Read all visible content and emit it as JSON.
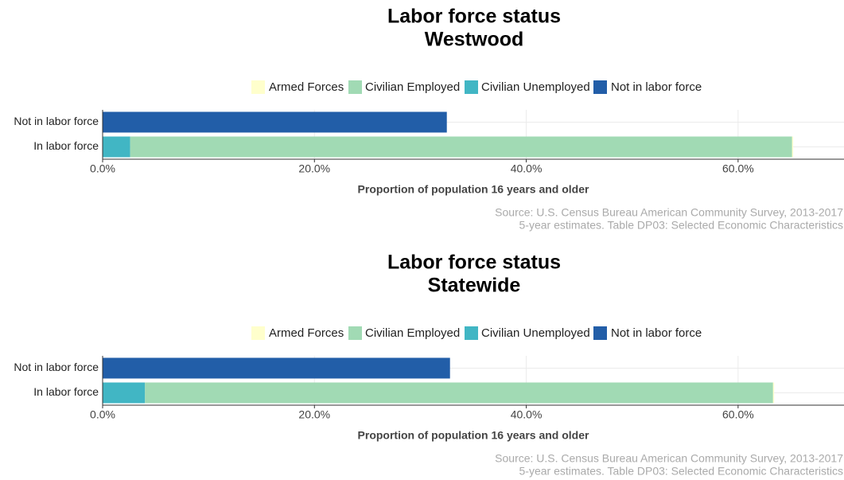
{
  "chart_data": [
    {
      "type": "bar",
      "orientation": "horizontal",
      "stacked": true,
      "title": "Labor force status",
      "subtitle": "Westwood",
      "categories": [
        "Not in labor force",
        "In labor force"
      ],
      "series": [
        {
          "name": "Armed Forces",
          "color": "#ffffcc",
          "values": [
            null,
            0.1
          ]
        },
        {
          "name": "Civilian Employed",
          "color": "#a1dab4",
          "values": [
            null,
            62.5
          ]
        },
        {
          "name": "Civilian Unemployed",
          "color": "#41b6c4",
          "values": [
            null,
            2.6
          ]
        },
        {
          "name": "Not in labor force",
          "color": "#225ea8",
          "values": [
            32.5,
            null
          ]
        }
      ],
      "xlabel": "Proportion of population 16 years and older",
      "xlim": [
        0,
        70
      ],
      "xticks": [
        {
          "value": 0,
          "label": "0.0%"
        },
        {
          "value": 20,
          "label": "20.0%"
        },
        {
          "value": 40,
          "label": "40.0%"
        },
        {
          "value": 60,
          "label": "60.0%"
        }
      ],
      "grid": true,
      "legend": "top",
      "caption": [
        "Source: U.S. Census Bureau American Community Survey, 2013-2017",
        "5-year estimates. Table DP03: Selected Economic Characteristics"
      ]
    },
    {
      "type": "bar",
      "orientation": "horizontal",
      "stacked": true,
      "title": "Labor force status",
      "subtitle": "Statewide",
      "categories": [
        "Not in labor force",
        "In labor force"
      ],
      "series": [
        {
          "name": "Armed Forces",
          "color": "#ffffcc",
          "values": [
            null,
            0.1
          ]
        },
        {
          "name": "Civilian Employed",
          "color": "#a1dab4",
          "values": [
            null,
            59.3
          ]
        },
        {
          "name": "Civilian Unemployed",
          "color": "#41b6c4",
          "values": [
            null,
            4.0
          ]
        },
        {
          "name": "Not in labor force",
          "color": "#225ea8",
          "values": [
            32.8,
            null
          ]
        }
      ],
      "xlabel": "Proportion of population 16 years and older",
      "xlim": [
        0,
        70
      ],
      "xticks": [
        {
          "value": 0,
          "label": "0.0%"
        },
        {
          "value": 20,
          "label": "20.0%"
        },
        {
          "value": 40,
          "label": "40.0%"
        },
        {
          "value": 60,
          "label": "60.0%"
        }
      ],
      "grid": true,
      "legend": "top",
      "caption": [
        "Source: U.S. Census Bureau American Community Survey, 2013-2017",
        "5-year estimates. Table DP03: Selected Economic Characteristics"
      ]
    }
  ]
}
